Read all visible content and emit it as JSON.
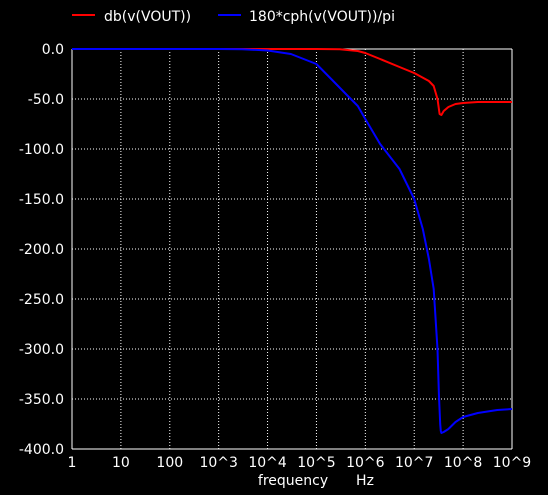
{
  "chart_data": {
    "type": "line",
    "xscale": "log",
    "xlim": [
      1,
      1000000000
    ],
    "ylim": [
      -400,
      0
    ],
    "grid": true,
    "background": "#000000",
    "grid_color": "#ffffff",
    "legend_position": "top",
    "xlabel": "frequency",
    "xunit": "Hz",
    "xtick_values": [
      1,
      10,
      100,
      1000,
      10000,
      100000,
      1000000,
      10000000,
      100000000,
      1000000000
    ],
    "xtick_labels": [
      "1",
      "10",
      "100",
      "10^3",
      "10^4",
      "10^5",
      "10^6",
      "10^7",
      "10^8",
      "10^9"
    ],
    "ytick_values": [
      0,
      -50,
      -100,
      -150,
      -200,
      -250,
      -300,
      -350,
      -400
    ],
    "ytick_labels": [
      "0.0",
      "-50.0",
      "-100.0",
      "-150.0",
      "-200.0",
      "-250.0",
      "-300.0",
      "-350.0",
      "-400.0"
    ],
    "series": [
      {
        "name": "db(v(VOUT))",
        "color": "#ff0000",
        "x": [
          1,
          10,
          100,
          1000,
          10000,
          100000,
          300000,
          700000,
          1000000,
          2000000,
          5000000,
          10000000,
          20000000,
          25000000,
          30000000,
          33000000,
          36000000,
          40000000,
          50000000,
          70000000,
          100000000,
          200000000,
          500000000,
          1000000000
        ],
        "y": [
          0,
          0,
          0,
          0,
          0,
          0,
          -0.3,
          -2,
          -4,
          -10,
          -18,
          -24,
          -32,
          -37,
          -50,
          -65,
          -66,
          -62,
          -58,
          -55,
          -54,
          -53,
          -53,
          -53
        ]
      },
      {
        "name": "180*cph(v(VOUT))/pi",
        "color": "#0000ff",
        "x": [
          1,
          10,
          100,
          1000,
          3000,
          10000,
          30000,
          100000,
          200000,
          400000,
          700000,
          1000000,
          2000000,
          5000000,
          10000000,
          15000000,
          20000000,
          25000000,
          30000000,
          32000000,
          34000000,
          35000000,
          36000000,
          40000000,
          50000000,
          70000000,
          100000000,
          200000000,
          500000000,
          1000000000
        ],
        "y": [
          0,
          0,
          0,
          0,
          -0.2,
          -1.5,
          -5,
          -15,
          -30,
          -45,
          -57,
          -70,
          -95,
          -120,
          -150,
          -180,
          -210,
          -240,
          -300,
          -345,
          -375,
          -382,
          -384,
          -383,
          -380,
          -373,
          -368,
          -364,
          -361,
          -360
        ]
      }
    ]
  }
}
